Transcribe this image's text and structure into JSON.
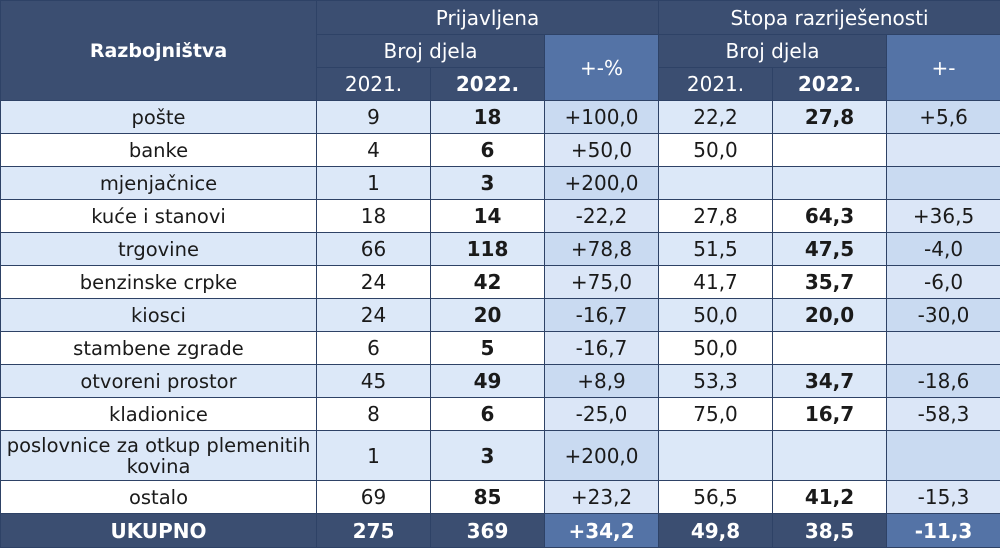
{
  "header": {
    "category_label": "Razbojništva",
    "group_reported": "Prijavljena",
    "group_solved": "Stopa razriješenosti",
    "sub_count_reported": "Broj djela",
    "sub_count_solved": "Broj djela",
    "change_pct_label": "+-%",
    "change_label": "+-",
    "year_2021_a": "2021.",
    "year_2022_a": "2022.",
    "year_2021_b": "2021.",
    "year_2022_b": "2022."
  },
  "rows": [
    {
      "name": "pošte",
      "r2021": "9",
      "r2022": "18",
      "rchange": "+100,0",
      "s2021": "22,2",
      "s2022": "27,8",
      "schange": "+5,6"
    },
    {
      "name": "banke",
      "r2021": "4",
      "r2022": "6",
      "rchange": "+50,0",
      "s2021": "50,0",
      "s2022": "",
      "schange": ""
    },
    {
      "name": "mjenjačnice",
      "r2021": "1",
      "r2022": "3",
      "rchange": "+200,0",
      "s2021": "",
      "s2022": "",
      "schange": ""
    },
    {
      "name": "kuće i stanovi",
      "r2021": "18",
      "r2022": "14",
      "rchange": "-22,2",
      "s2021": "27,8",
      "s2022": "64,3",
      "schange": "+36,5"
    },
    {
      "name": "trgovine",
      "r2021": "66",
      "r2022": "118",
      "rchange": "+78,8",
      "s2021": "51,5",
      "s2022": "47,5",
      "schange": "-4,0"
    },
    {
      "name": "benzinske crpke",
      "r2021": "24",
      "r2022": "42",
      "rchange": "+75,0",
      "s2021": "41,7",
      "s2022": "35,7",
      "schange": "-6,0"
    },
    {
      "name": "kiosci",
      "r2021": "24",
      "r2022": "20",
      "rchange": "-16,7",
      "s2021": "50,0",
      "s2022": "20,0",
      "schange": "-30,0"
    },
    {
      "name": "stambene zgrade",
      "r2021": "6",
      "r2022": "5",
      "rchange": "-16,7",
      "s2021": "50,0",
      "s2022": "",
      "schange": ""
    },
    {
      "name": "otvoreni prostor",
      "r2021": "45",
      "r2022": "49",
      "rchange": "+8,9",
      "s2021": "53,3",
      "s2022": "34,7",
      "schange": "-18,6"
    },
    {
      "name": "kladionice",
      "r2021": "8",
      "r2022": "6",
      "rchange": "-25,0",
      "s2021": "75,0",
      "s2022": "16,7",
      "schange": "-58,3"
    },
    {
      "name": "poslovnice za otkup plemenitih kovina",
      "r2021": "1",
      "r2022": "3",
      "rchange": "+200,0",
      "s2021": "",
      "s2022": "",
      "schange": ""
    },
    {
      "name": "ostalo",
      "r2021": "69",
      "r2022": "85",
      "rchange": "+23,2",
      "s2021": "56,5",
      "s2022": "41,2",
      "schange": "-15,3"
    }
  ],
  "total": {
    "name": "UKUPNO",
    "r2021": "275",
    "r2022": "369",
    "rchange": "+34,2",
    "s2021": "49,8",
    "s2022": "38,5",
    "schange": "-11,3"
  }
}
